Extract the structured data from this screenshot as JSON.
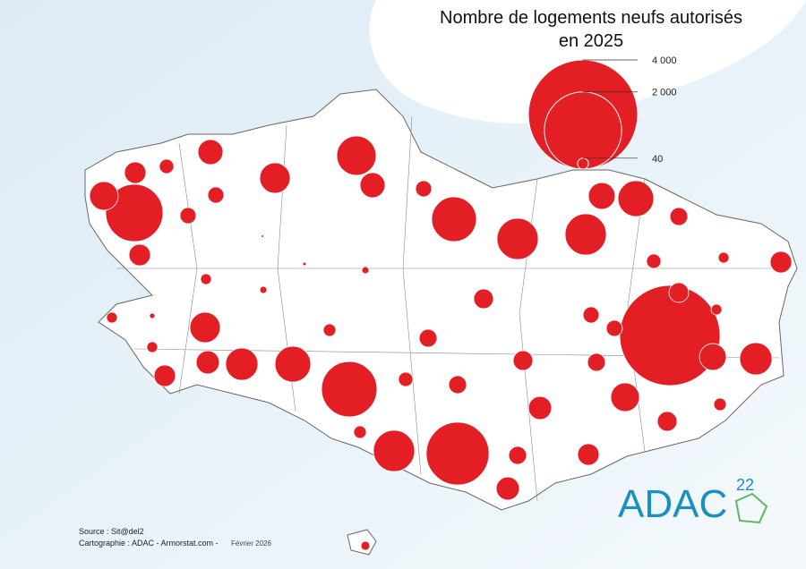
{
  "title": [
    "Nombre de logements neufs autorisés",
    "en 2025"
  ],
  "legend": [
    {
      "value": 4000,
      "label": "4 000"
    },
    {
      "value": 2000,
      "label": "2 000"
    },
    {
      "value": 40,
      "label": "40"
    }
  ],
  "circles": {
    "color": "#e31e24",
    "values": [
      1100,
      275,
      155,
      70,
      210,
      310,
      520,
      210,
      87,
      670,
      87,
      87,
      155,
      2,
      4,
      17,
      39,
      17,
      570,
      570,
      240,
      430,
      107,
      70,
      39,
      155,
      130,
      87,
      3370,
      130,
      39,
      87,
      240,
      350,
      39,
      10,
      310,
      39,
      180,
      350,
      430,
      155,
      53,
      107,
      1030,
      70,
      107,
      130,
      107,
      275,
      180,
      53,
      130,
      53,
      570,
      1320,
      107,
      155,
      180,
      27
    ]
  },
  "source": "Source : Sit@del2",
  "credit": "Cartographie : ADAC - Armorstat.com -",
  "date": "Février 2026",
  "logo": {
    "text": "ADAC",
    "number": "22"
  }
}
